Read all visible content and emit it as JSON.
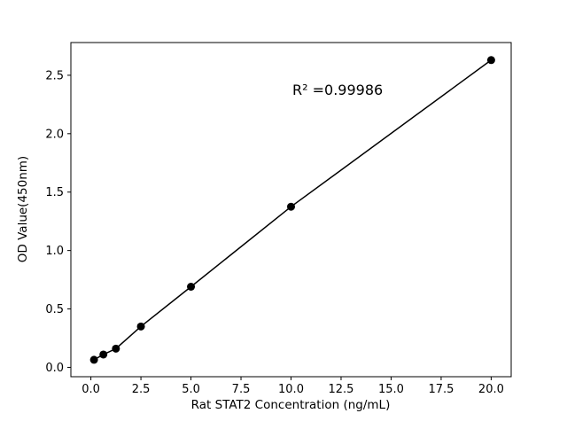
{
  "chart_data": {
    "type": "scatter",
    "title": "",
    "xlabel": "Rat STAT2 Concentration (ng/mL)",
    "ylabel": "OD Value(450nm)",
    "annotation": "R² =0.99986",
    "x": [
      0.156,
      0.625,
      1.25,
      2.5,
      5,
      10,
      20
    ],
    "y": [
      0.065,
      0.11,
      0.16,
      0.35,
      0.69,
      1.375,
      2.63
    ],
    "line_through_points": true,
    "xlim": [
      -1,
      21
    ],
    "ylim": [
      -0.08,
      2.78
    ],
    "xticks": [
      0,
      2.5,
      5,
      7.5,
      10,
      12.5,
      15,
      17.5,
      20
    ],
    "xtick_labels": [
      "0.0",
      "2.5",
      "5.0",
      "7.5",
      "10.0",
      "12.5",
      "15.0",
      "17.5",
      "20.0"
    ],
    "yticks": [
      0,
      0.5,
      1,
      1.5,
      2,
      2.5
    ],
    "ytick_labels": [
      "0.0",
      "0.5",
      "1.0",
      "1.5",
      "2.0",
      "2.5"
    ],
    "grid": false,
    "legend": null,
    "colors": {
      "line": "#000000",
      "marker": "#000000",
      "axis": "#000000",
      "background": "#ffffff"
    }
  }
}
